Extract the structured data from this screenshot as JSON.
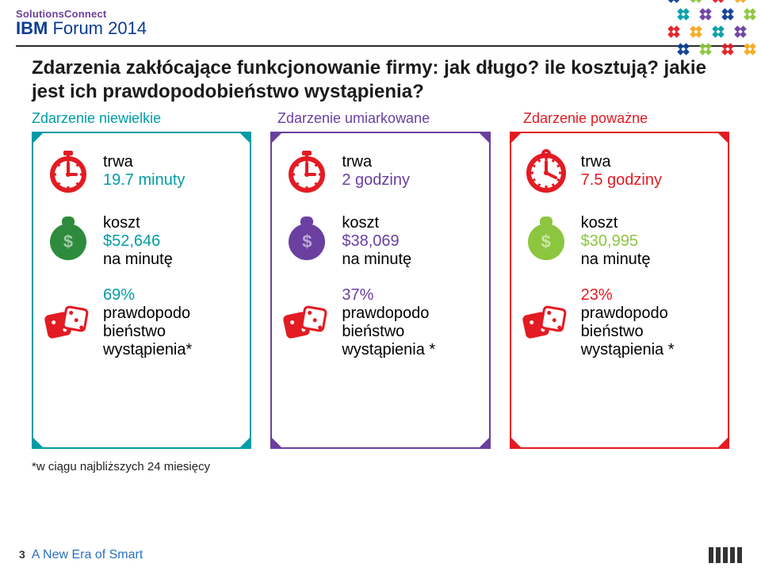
{
  "brand": {
    "top": "SolutionsConnect",
    "top_color": "#6b3fa0",
    "line_prefix_bold": "IBM",
    "line_rest": " Forum 2014",
    "line_color": "#0a3d91"
  },
  "title": "Zdarzenia zakłócające funkcjonowanie firmy: jak długo? ile kosztują? jakie jest ich prawdopodobieństwo wystąpienia?",
  "categories": [
    {
      "label": "Zdarzenie niewielkie",
      "color": "#009ca6"
    },
    {
      "label": "Zdarzenie umiarkowane",
      "color": "#6b3fa0"
    },
    {
      "label": "Zdarzenie poważne",
      "color": "#e31b23"
    }
  ],
  "cards": [
    {
      "border_color": "#009ca6",
      "duration": {
        "label": "trwa",
        "value": "19.7 minuty",
        "value_color": "#009ca6",
        "icon": "stopwatch",
        "icon_color": "#e31b23"
      },
      "cost": {
        "label": "koszt",
        "value": "$52,646",
        "suffix": "na minutę",
        "value_color": "#009ca6",
        "icon": "moneybag",
        "icon_color": "#2e8b3d"
      },
      "prob": {
        "value": "69%",
        "suffix_lines": [
          "prawdopodo",
          "bieństwo",
          "wystąpienia*"
        ],
        "value_color": "#009ca6",
        "icon": "dice",
        "icon_color": "#e31b23"
      }
    },
    {
      "border_color": "#6b3fa0",
      "duration": {
        "label": "trwa",
        "value": "2 godziny",
        "value_color": "#6b3fa0",
        "icon": "stopwatch",
        "icon_color": "#e31b23"
      },
      "cost": {
        "label": "koszt",
        "value": "$38,069",
        "suffix": "na minutę",
        "value_color": "#6b3fa0",
        "icon": "moneybag",
        "icon_color": "#6b3fa0"
      },
      "prob": {
        "value": "37%",
        "suffix_lines": [
          "prawdopodo",
          "bieństwo",
          "wystąpienia *"
        ],
        "value_color": "#6b3fa0",
        "icon": "dice",
        "icon_color": "#e31b23"
      }
    },
    {
      "border_color": "#e31b23",
      "duration": {
        "label": "trwa",
        "value": "7.5 godziny",
        "value_color": "#e31b23",
        "icon": "clock",
        "icon_color": "#e31b23"
      },
      "cost": {
        "label": "koszt",
        "value": "$30,995",
        "suffix": "na minutę",
        "value_color": "#8cc63f",
        "icon": "moneybag",
        "icon_color": "#8cc63f"
      },
      "prob": {
        "value": "23%",
        "suffix_lines": [
          "prawdopodo",
          "bieństwo",
          "wystąpienia *"
        ],
        "value_color": "#e31b23",
        "icon": "dice",
        "icon_color": "#e31b23"
      }
    }
  ],
  "footnote": "*w ciągu najbliższych 24 miesięcy",
  "footer": {
    "page": "3",
    "tagline": "A New Era of Smart"
  },
  "deco_colors": [
    "#0a3d91",
    "#8cc63f",
    "#e31b23",
    "#f6a81c",
    "#009ca6",
    "#6b3fa0"
  ]
}
